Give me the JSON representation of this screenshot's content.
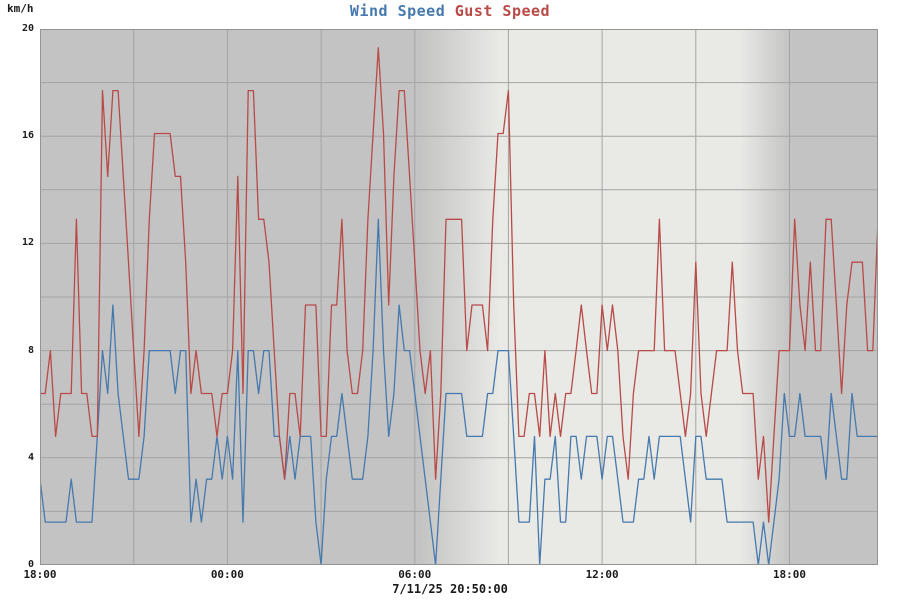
{
  "title": {
    "series1": "Wind Speed",
    "series2": "Gust Speed"
  },
  "colors": {
    "wind": "#4679ad",
    "gust": "#b84a48",
    "night_bg": "#c3c3c3",
    "day_bg": "#e9e9e6",
    "grid": "#a4a4a4",
    "border": "#949494",
    "text": "#1a1a1a"
  },
  "chart_data": {
    "type": "line",
    "title": "Wind Speed Gust Speed",
    "ylabel": "km/h",
    "timestamp": "7/11/25 20:50:00",
    "ylim": [
      0,
      20
    ],
    "y_tick_labels": [
      "0",
      "4",
      "8",
      "12",
      "16",
      "20"
    ],
    "y_tick_values": [
      0,
      4,
      8,
      12,
      16,
      20
    ],
    "y_grid_step": 2,
    "x_total_minutes": 1610,
    "sample_interval_minutes": 10,
    "x_start_label": "18:00",
    "x_end_time": "20:50",
    "x_tick_labels": [
      "18:00",
      "00:00",
      "06:00",
      "12:00",
      "18:00"
    ],
    "x_tick_minutes": [
      0,
      360,
      720,
      1080,
      1440
    ],
    "x_grid_minutes": [
      180,
      360,
      540,
      720,
      900,
      1080,
      1260,
      1440
    ],
    "grid": true,
    "legend_position": "top-center",
    "background_bands": {
      "description": "night (dark) / day (light) shading, gradient fractions of x-range",
      "stops": [
        {
          "offset": 0.0,
          "band": "night"
        },
        {
          "offset": 0.453,
          "band": "night"
        },
        {
          "offset": 0.549,
          "band": "day"
        },
        {
          "offset": 0.835,
          "band": "day"
        },
        {
          "offset": 0.895,
          "band": "night"
        },
        {
          "offset": 1.0,
          "band": "night"
        }
      ]
    },
    "series": [
      {
        "name": "Wind Speed",
        "color_key": "wind",
        "values": [
          3.2,
          1.6,
          1.6,
          1.6,
          1.6,
          1.6,
          3.2,
          1.6,
          1.6,
          1.6,
          1.6,
          4.8,
          8,
          6.4,
          9.7,
          6.4,
          4.8,
          3.2,
          3.2,
          3.2,
          4.8,
          8,
          8,
          8,
          8,
          8,
          6.4,
          8,
          8,
          1.6,
          3.2,
          1.6,
          3.2,
          3.2,
          4.8,
          3.2,
          4.8,
          3.2,
          8,
          1.6,
          8,
          8,
          6.4,
          8,
          8,
          4.8,
          4.8,
          3.2,
          4.8,
          3.2,
          4.8,
          4.8,
          4.8,
          1.6,
          0,
          3.2,
          4.8,
          4.8,
          6.4,
          4.8,
          3.2,
          3.2,
          3.2,
          4.8,
          8,
          12.9,
          8,
          4.8,
          6.4,
          9.7,
          8,
          8,
          6.4,
          4.8,
          3.2,
          1.6,
          0,
          3.2,
          6.4,
          6.4,
          6.4,
          6.4,
          4.8,
          4.8,
          4.8,
          4.8,
          6.4,
          6.4,
          8,
          8,
          8,
          4.8,
          1.6,
          1.6,
          1.6,
          4.8,
          0,
          3.2,
          3.2,
          4.8,
          1.6,
          1.6,
          4.8,
          4.8,
          3.2,
          4.8,
          4.8,
          4.8,
          3.2,
          4.8,
          4.8,
          3.2,
          1.6,
          1.6,
          1.6,
          3.2,
          3.2,
          4.8,
          3.2,
          4.8,
          4.8,
          4.8,
          4.8,
          4.8,
          3.2,
          1.6,
          4.8,
          4.8,
          3.2,
          3.2,
          3.2,
          3.2,
          1.6,
          1.6,
          1.6,
          1.6,
          1.6,
          1.6,
          0,
          1.6,
          0,
          1.6,
          3.2,
          6.4,
          4.8,
          4.8,
          6.4,
          4.8,
          4.8,
          4.8,
          4.8,
          3.2,
          6.4,
          4.8,
          3.2,
          3.2,
          6.4,
          4.8,
          4.8,
          4.8,
          4.8,
          4.8
        ]
      },
      {
        "name": "Gust Speed",
        "color_key": "gust",
        "values": [
          6.4,
          6.4,
          8,
          4.8,
          6.4,
          6.4,
          6.4,
          12.9,
          6.4,
          6.4,
          4.8,
          4.8,
          17.7,
          14.5,
          17.7,
          17.7,
          14.5,
          11.3,
          8,
          4.8,
          8,
          12.9,
          16.1,
          16.1,
          16.1,
          16.1,
          14.5,
          14.5,
          11.3,
          6.4,
          8,
          6.4,
          6.4,
          6.4,
          4.8,
          6.4,
          6.4,
          8,
          14.5,
          6.4,
          17.7,
          17.7,
          12.9,
          12.9,
          11.3,
          8,
          4.8,
          3.2,
          6.4,
          6.4,
          4.8,
          9.7,
          9.7,
          9.7,
          4.8,
          4.8,
          9.7,
          9.7,
          12.9,
          8,
          6.4,
          6.4,
          8,
          12.9,
          16.1,
          19.3,
          16.1,
          9.7,
          14.5,
          17.7,
          17.7,
          14.5,
          11.3,
          8,
          6.4,
          8,
          3.2,
          6.4,
          12.9,
          12.9,
          12.9,
          12.9,
          8,
          9.7,
          9.7,
          9.7,
          8,
          12.9,
          16.1,
          16.1,
          17.7,
          9.7,
          4.8,
          4.8,
          6.4,
          6.4,
          4.8,
          8,
          4.8,
          6.4,
          4.8,
          6.4,
          6.4,
          8,
          9.7,
          8,
          6.4,
          6.4,
          9.7,
          8,
          9.7,
          8,
          4.8,
          3.2,
          6.4,
          8,
          8,
          8,
          8,
          12.9,
          8,
          8,
          8,
          6.4,
          4.8,
          6.4,
          11.3,
          6.4,
          4.8,
          6.4,
          8,
          8,
          8,
          11.3,
          8,
          6.4,
          6.4,
          6.4,
          3.2,
          4.8,
          1.6,
          4.8,
          8,
          8,
          8,
          12.9,
          9.7,
          8,
          11.3,
          8,
          8,
          12.9,
          12.9,
          9.7,
          6.4,
          9.7,
          11.3,
          11.3,
          11.3,
          8,
          8,
          12.9
        ]
      }
    ]
  }
}
